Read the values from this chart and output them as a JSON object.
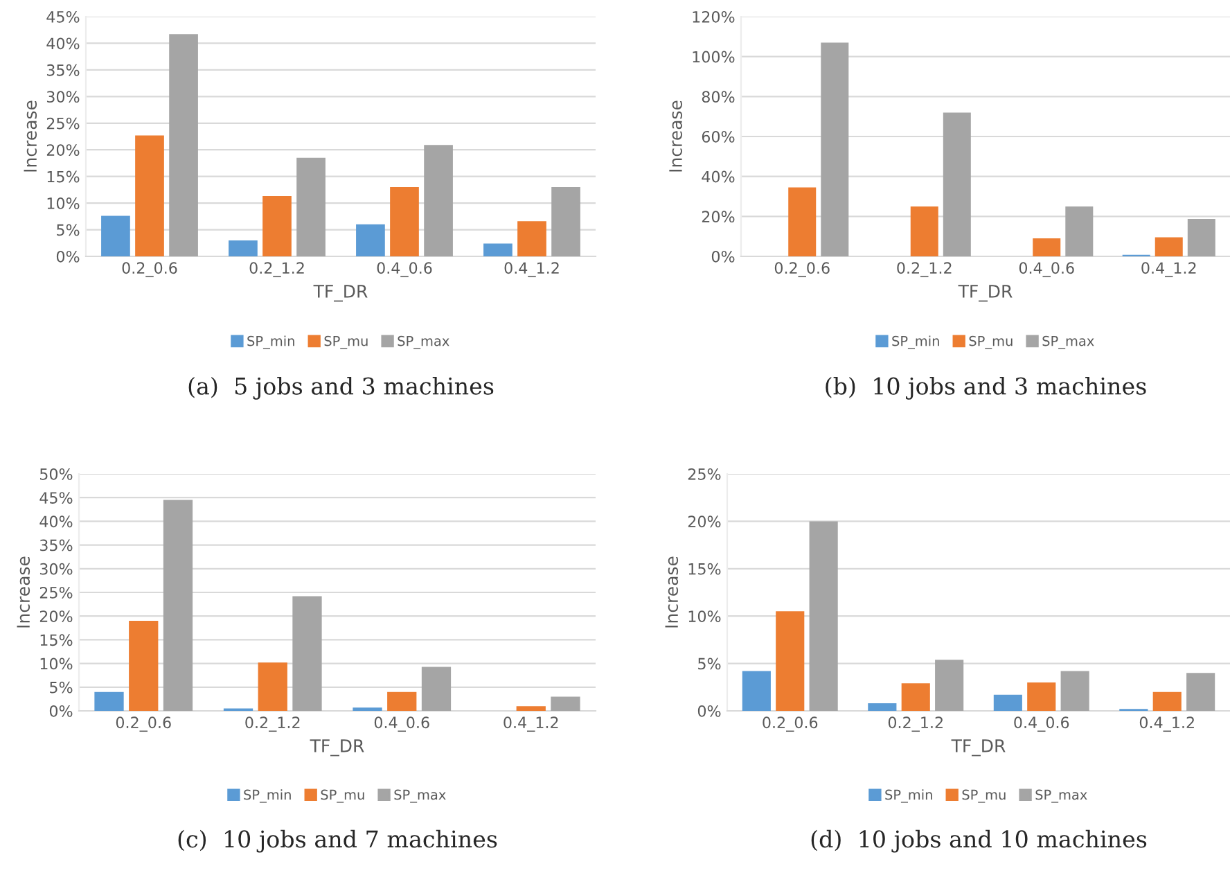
{
  "chart_data": [
    {
      "type": "bar",
      "title": "(a)  5 jobs and 3 machines",
      "xlabel": "TF_DR",
      "ylabel": "Increase",
      "categories": [
        "0.2_0.6",
        "0.2_1.2",
        "0.4_0.6",
        "0.4_1.2"
      ],
      "series": [
        {
          "name": "SP_min",
          "color": "#5b9bd5",
          "values": [
            7.6,
            3.0,
            6.0,
            2.4
          ]
        },
        {
          "name": "SP_mu",
          "color": "#ed7d31",
          "values": [
            22.7,
            11.3,
            13.0,
            6.6
          ]
        },
        {
          "name": "SP_max",
          "color": "#a5a5a5",
          "values": [
            41.7,
            18.5,
            20.9,
            13.0
          ]
        }
      ],
      "ylim": [
        0,
        45
      ],
      "yticks": [
        {
          "value": 0,
          "label": "0%"
        },
        {
          "value": 5,
          "label": "5%"
        },
        {
          "value": 10,
          "label": "10%"
        },
        {
          "value": 15,
          "label": "15%"
        },
        {
          "value": 20,
          "label": "20%"
        },
        {
          "value": 25,
          "label": "25%"
        },
        {
          "value": 30,
          "label": "30%"
        },
        {
          "value": 35,
          "label": "35%"
        },
        {
          "value": 40,
          "label": "40%"
        },
        {
          "value": 45,
          "label": "45%"
        }
      ],
      "grid": "y",
      "legend": "bottom"
    },
    {
      "type": "bar",
      "title": "(b)  10 jobs and 3 machines",
      "xlabel": "TF_DR",
      "ylabel": "Increase",
      "categories": [
        "0.2_0.6",
        "0.2_1.2",
        "0.4_0.6",
        "0.4_1.2"
      ],
      "series": [
        {
          "name": "SP_min",
          "color": "#5b9bd5",
          "values": [
            null,
            null,
            null,
            0.8
          ]
        },
        {
          "name": "SP_mu",
          "color": "#ed7d31",
          "values": [
            34.5,
            25,
            9,
            9.5
          ]
        },
        {
          "name": "SP_max",
          "color": "#a5a5a5",
          "values": [
            107,
            72,
            25,
            18.7
          ]
        }
      ],
      "ylim": [
        0,
        120
      ],
      "yticks": [
        {
          "value": 0,
          "label": "0%"
        },
        {
          "value": 20,
          "label": "20%"
        },
        {
          "value": 40,
          "label": "40%"
        },
        {
          "value": 60,
          "label": "60%"
        },
        {
          "value": 80,
          "label": "80%"
        },
        {
          "value": 100,
          "label": "100%"
        },
        {
          "value": 120,
          "label": "120%"
        }
      ],
      "grid": "y",
      "legend": "bottom"
    },
    {
      "type": "bar",
      "title": "(c)  10 jobs and 7 machines",
      "xlabel": "TF_DR",
      "ylabel": "Increase",
      "categories": [
        "0.2_0.6",
        "0.2_1.2",
        "0.4_0.6",
        "0.4_1.2"
      ],
      "series": [
        {
          "name": "SP_min",
          "color": "#5b9bd5",
          "values": [
            4.0,
            0.5,
            0.7,
            null
          ]
        },
        {
          "name": "SP_mu",
          "color": "#ed7d31",
          "values": [
            19.0,
            10.2,
            4.0,
            1.0
          ]
        },
        {
          "name": "SP_max",
          "color": "#a5a5a5",
          "values": [
            44.5,
            24.2,
            9.3,
            3.0
          ]
        }
      ],
      "ylim": [
        0,
        50
      ],
      "yticks": [
        {
          "value": 0,
          "label": "0%"
        },
        {
          "value": 5,
          "label": "5%"
        },
        {
          "value": 10,
          "label": "10%"
        },
        {
          "value": 15,
          "label": "15%"
        },
        {
          "value": 20,
          "label": "20%"
        },
        {
          "value": 25,
          "label": "25%"
        },
        {
          "value": 30,
          "label": "30%"
        },
        {
          "value": 35,
          "label": "35%"
        },
        {
          "value": 40,
          "label": "40%"
        },
        {
          "value": 45,
          "label": "45%"
        },
        {
          "value": 50,
          "label": "50%"
        }
      ],
      "grid": "y",
      "legend": "bottom"
    },
    {
      "type": "bar",
      "title": "(d)  10 jobs and 10 machines",
      "xlabel": "TF_DR",
      "ylabel": "Increase",
      "categories": [
        "0.2_0.6",
        "0.2_1.2",
        "0.4_0.6",
        "0.4_1.2"
      ],
      "series": [
        {
          "name": "SP_min",
          "color": "#5b9bd5",
          "values": [
            4.2,
            0.8,
            1.7,
            0.2
          ]
        },
        {
          "name": "SP_mu",
          "color": "#ed7d31",
          "values": [
            10.5,
            2.9,
            3.0,
            2.0
          ]
        },
        {
          "name": "SP_max",
          "color": "#a5a5a5",
          "values": [
            20.0,
            5.4,
            4.2,
            4.0
          ]
        }
      ],
      "ylim": [
        0,
        25
      ],
      "yticks": [
        {
          "value": 0,
          "label": "0%"
        },
        {
          "value": 5,
          "label": "5%"
        },
        {
          "value": 10,
          "label": "10%"
        },
        {
          "value": 15,
          "label": "15%"
        },
        {
          "value": 20,
          "label": "20%"
        },
        {
          "value": 25,
          "label": "25%"
        }
      ],
      "grid": "y",
      "legend": "bottom"
    }
  ]
}
